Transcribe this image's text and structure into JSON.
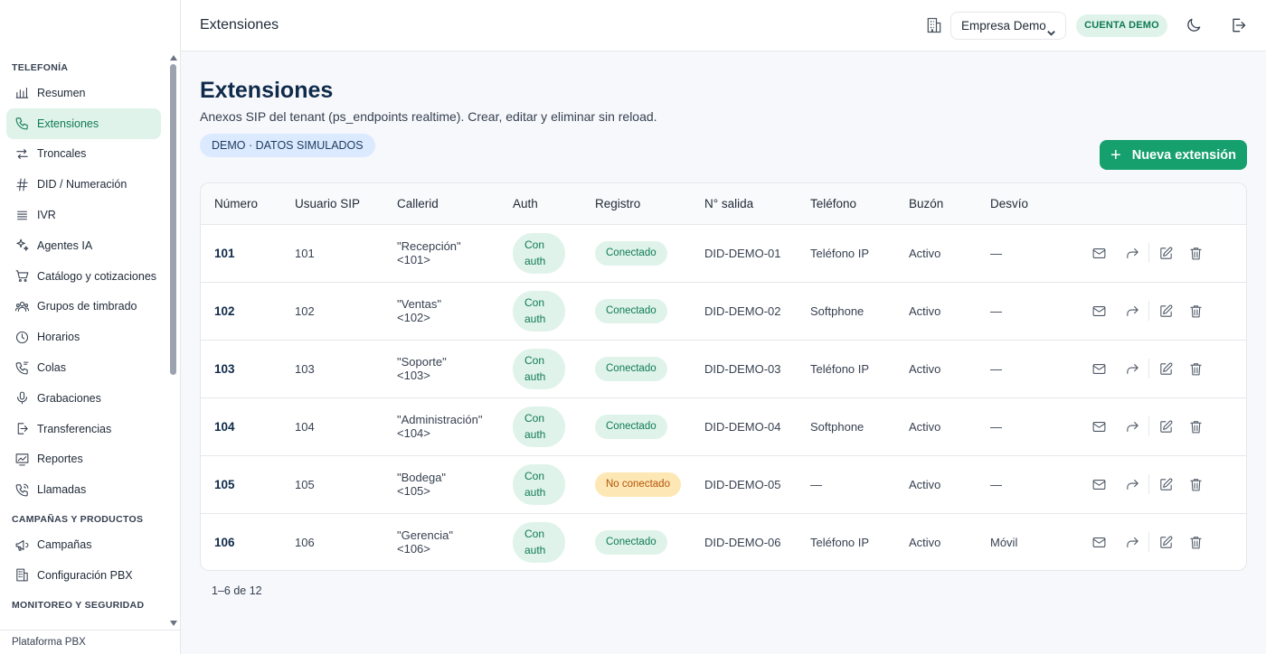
{
  "sidebar": {
    "sections": [
      {
        "title": "TELEFONÍA",
        "items": [
          {
            "label": "Resumen",
            "icon": "chart-bar-icon"
          },
          {
            "label": "Extensiones",
            "icon": "phone-icon",
            "active": true
          },
          {
            "label": "Troncales",
            "icon": "arrows-exchange-icon"
          },
          {
            "label": "DID / Numeración",
            "icon": "hash-icon"
          },
          {
            "label": "IVR",
            "icon": "list-icon"
          },
          {
            "label": "Agentes IA",
            "icon": "sparkles-icon"
          },
          {
            "label": "Catálogo y cotizaciones",
            "icon": "cart-icon"
          },
          {
            "label": "Grupos de timbrado",
            "icon": "users-group-icon"
          },
          {
            "label": "Horarios",
            "icon": "clock-icon"
          },
          {
            "label": "Colas",
            "icon": "phone-queue-icon"
          },
          {
            "label": "Grabaciones",
            "icon": "microphone-icon"
          },
          {
            "label": "Transferencias",
            "icon": "transfer-icon"
          },
          {
            "label": "Reportes",
            "icon": "chart-line-icon"
          },
          {
            "label": "Llamadas",
            "icon": "phone-call-icon"
          }
        ]
      },
      {
        "title": "CAMPAÑAS Y PRODUCTOS",
        "items": [
          {
            "label": "Campañas",
            "icon": "megaphone-icon"
          },
          {
            "label": "Configuración PBX",
            "icon": "building-icon"
          }
        ]
      },
      {
        "title": "MONITOREO Y SEGURIDAD",
        "items": []
      }
    ],
    "footer": "Plataforma PBX"
  },
  "header": {
    "title": "Extensiones",
    "company": "Empresa Demo",
    "account_badge": "CUENTA DEMO"
  },
  "main": {
    "title": "Extensiones",
    "subtitle": "Anexos SIP del tenant (ps_endpoints realtime). Crear, editar y eliminar sin reload.",
    "demo_badge": "DEMO · DATOS SIMULADOS",
    "new_button": "Nueva extensión",
    "pagination": "1–6 de 12"
  },
  "table": {
    "columns": [
      "Número",
      "Usuario SIP",
      "Callerid",
      "Auth",
      "Registro",
      "N° salida",
      "Teléfono",
      "Buzón",
      "Desvío"
    ],
    "rows": [
      {
        "numero": "101",
        "usuario": "101",
        "callerid_name": "\"Recepción\"",
        "callerid_num": "<101>",
        "auth_1": "Con",
        "auth_2": "auth",
        "registro": "Conectado",
        "registro_ok": true,
        "salida": "DID-DEMO-01",
        "telefono": "Teléfono IP",
        "buzon": "Activo",
        "desvio": "—"
      },
      {
        "numero": "102",
        "usuario": "102",
        "callerid_name": "\"Ventas\"",
        "callerid_num": "<102>",
        "auth_1": "Con",
        "auth_2": "auth",
        "registro": "Conectado",
        "registro_ok": true,
        "salida": "DID-DEMO-02",
        "telefono": "Softphone",
        "buzon": "Activo",
        "desvio": "—"
      },
      {
        "numero": "103",
        "usuario": "103",
        "callerid_name": "\"Soporte\"",
        "callerid_num": "<103>",
        "auth_1": "Con",
        "auth_2": "auth",
        "registro": "Conectado",
        "registro_ok": true,
        "salida": "DID-DEMO-03",
        "telefono": "Teléfono IP",
        "buzon": "Activo",
        "desvio": "—"
      },
      {
        "numero": "104",
        "usuario": "104",
        "callerid_name": "\"Administración\"",
        "callerid_num": "<104>",
        "auth_1": "Con",
        "auth_2": "auth",
        "registro": "Conectado",
        "registro_ok": true,
        "salida": "DID-DEMO-04",
        "telefono": "Softphone",
        "buzon": "Activo",
        "desvio": "—"
      },
      {
        "numero": "105",
        "usuario": "105",
        "callerid_name": "\"Bodega\"",
        "callerid_num": "<105>",
        "auth_1": "Con",
        "auth_2": "auth",
        "registro": "No conectado",
        "registro_ok": false,
        "salida": "DID-DEMO-05",
        "telefono": "—",
        "buzon": "Activo",
        "desvio": "—"
      },
      {
        "numero": "106",
        "usuario": "106",
        "callerid_name": "\"Gerencia\"",
        "callerid_num": "<106>",
        "auth_1": "Con",
        "auth_2": "auth",
        "registro": "Conectado",
        "registro_ok": true,
        "salida": "DID-DEMO-06",
        "telefono": "Teléfono IP",
        "buzon": "Activo",
        "desvio": "Móvil"
      }
    ]
  },
  "colors": {
    "accent": "#16a06e",
    "active_bg": "#dff3ea",
    "active_text": "#0f7a55",
    "warning_bg": "#fde7b4",
    "warning_text": "#b45309",
    "title": "#0f2a4a"
  }
}
